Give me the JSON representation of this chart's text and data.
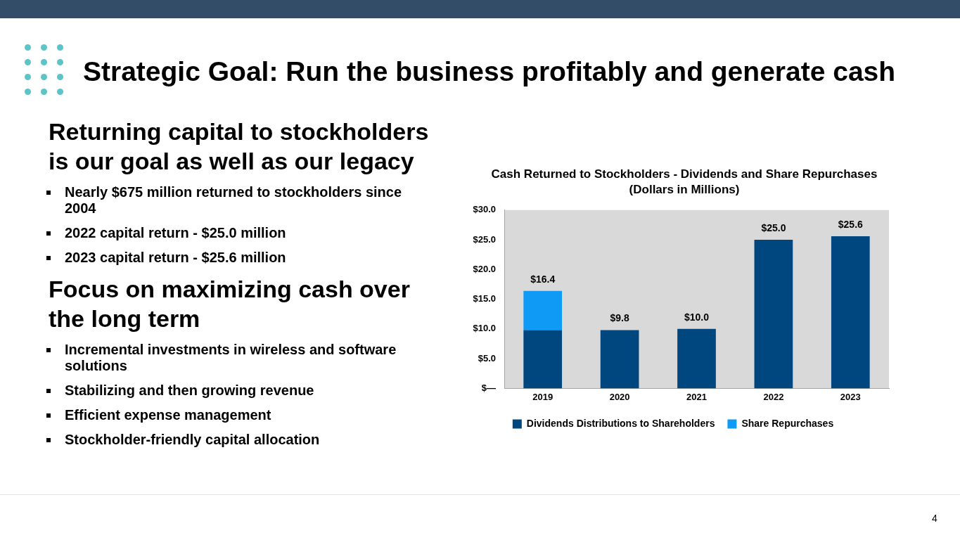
{
  "chart_data": {
    "type": "bar",
    "title": "Strategic Goal: Run the business profitably and generate cash",
    "subtitle": "Cash Returned to Stockholders - Dividends and Share Repurchases (Dollars in Millions)",
    "categories": [
      "2019",
      "2020",
      "2021",
      "2022",
      "2023"
    ],
    "series": [
      {
        "name": "Dividends Distributions to Shareholders",
        "color": "#00467f",
        "values": [
          9.8,
          9.8,
          10.0,
          25.0,
          25.6
        ]
      },
      {
        "name": "Share Repurchases",
        "color": "#0f9bf5",
        "values": [
          6.6,
          null,
          null,
          null,
          null
        ]
      }
    ],
    "stacked": true,
    "ylim": [
      0,
      30
    ],
    "yticks": [
      {
        "value": 0,
        "label": "$—"
      },
      {
        "value": 5,
        "label": "$5.0"
      },
      {
        "value": 10,
        "label": "$10.0"
      },
      {
        "value": 15,
        "label": "$15.0"
      },
      {
        "value": 20,
        "label": "$20.0"
      },
      {
        "value": 25,
        "label": "$25.0"
      },
      {
        "value": 30,
        "label": "$30.0"
      }
    ],
    "legend": "bottom",
    "totals": [
      "$16.4",
      "$9.8",
      "$10.0",
      "$25.0",
      "$25.6"
    ],
    "annotations": [
      "Returning capital to stockholders is our goal as well as our legacy",
      "Nearly $675 million returned to stockholders since 2004",
      "2022 capital return - $25.0 million",
      "2023 capital return - $25.6 million",
      "Focus on maximizing cash over the long term",
      "Incremental investments in wireless and software solutions",
      "Stabilizing and then growing revenue",
      "Efficient expense management",
      "Stockholder-friendly capital allocation",
      "4"
    ]
  }
}
